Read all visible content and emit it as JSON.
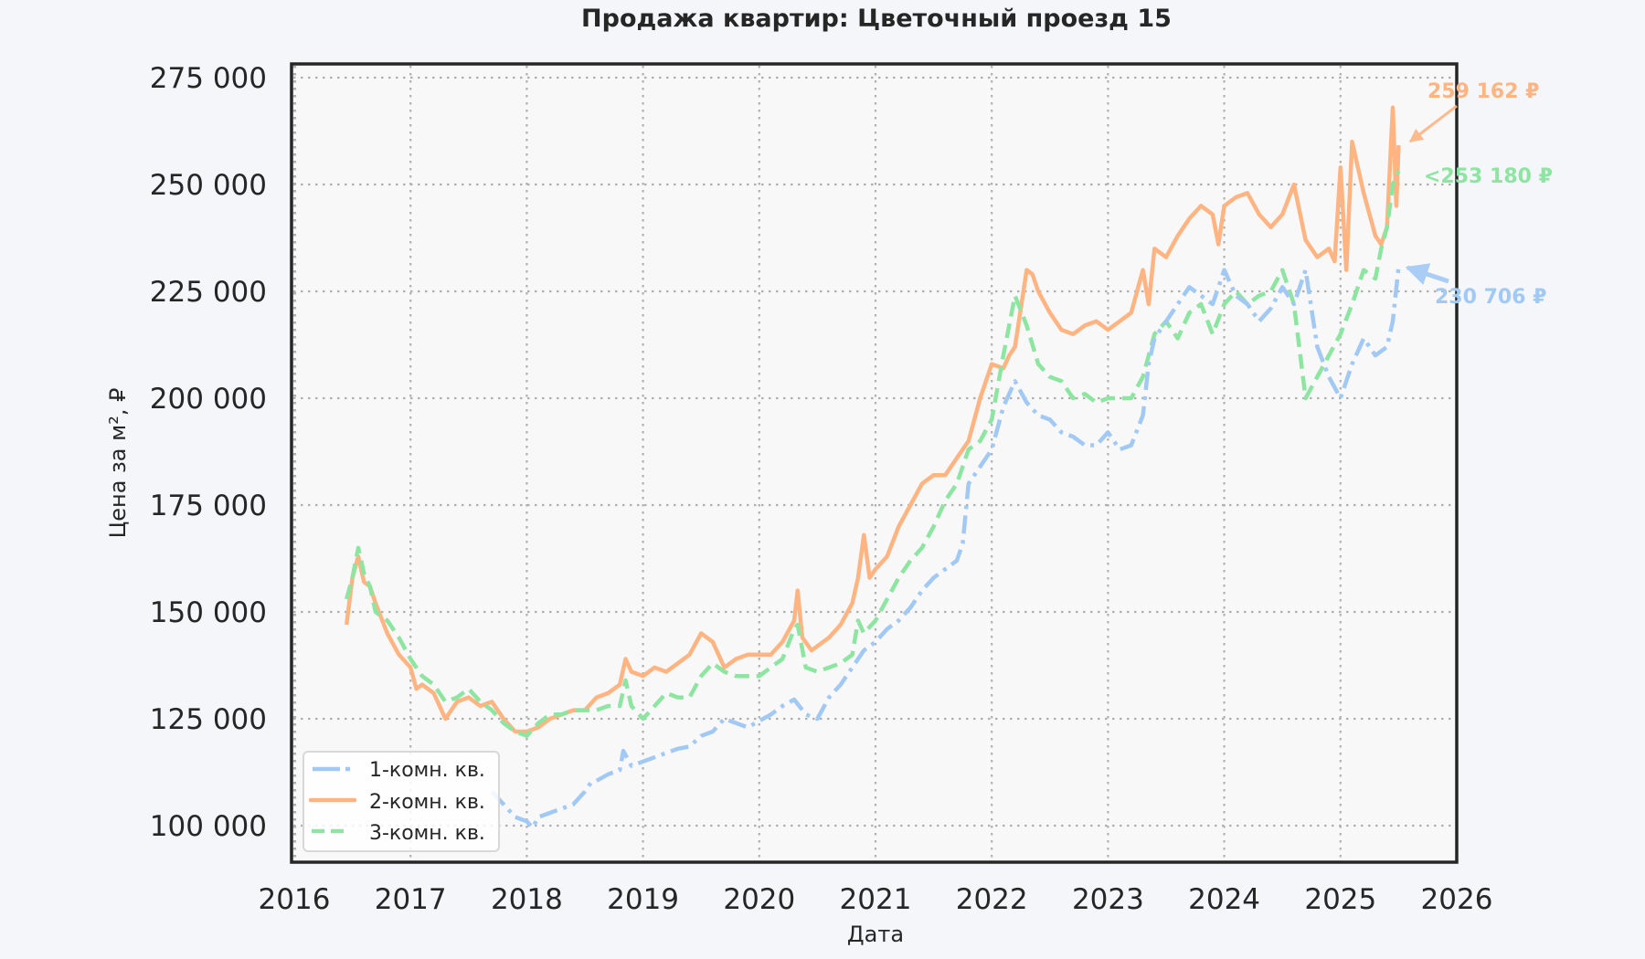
{
  "chart_data": {
    "type": "line",
    "title": "Продажа квартир: Цветочный проезд 15",
    "xlabel": "Дата",
    "ylabel": "Цена за м², ₽",
    "xlim": [
      2016,
      2026
    ],
    "ylim": [
      91500,
      278600
    ],
    "grid": true,
    "grid_style": "dotted",
    "legend_position": "lower left",
    "x_ticks": [
      "2016",
      "2017",
      "2018",
      "2019",
      "2020",
      "2021",
      "2022",
      "2023",
      "2024",
      "2025",
      "2026"
    ],
    "x_tick_values": [
      2016,
      2017,
      2018,
      2019,
      2020,
      2021,
      2022,
      2023,
      2024,
      2025,
      2026
    ],
    "y_ticks": [
      "100 000",
      "125 000",
      "150 000",
      "175 000",
      "200 000",
      "225 000",
      "250 000",
      "275 000"
    ],
    "y_tick_values": [
      100000,
      125000,
      150000,
      175000,
      200000,
      225000,
      250000,
      275000
    ],
    "series": [
      {
        "name": "1-комн. кв.",
        "color": "#a1c9f4",
        "style": "dashdot",
        "x": [
          2017.7,
          2017.8,
          2017.9,
          2018.0,
          2018.05,
          2018.1,
          2018.2,
          2018.3,
          2018.4,
          2018.5,
          2018.55,
          2018.6,
          2018.7,
          2018.8,
          2018.83,
          2018.9,
          2019.0,
          2019.1,
          2019.2,
          2019.3,
          2019.4,
          2019.5,
          2019.6,
          2019.7,
          2019.8,
          2019.9,
          2020.0,
          2020.1,
          2020.2,
          2020.3,
          2020.4,
          2020.5,
          2020.6,
          2020.7,
          2020.8,
          2020.9,
          2021.0,
          2021.1,
          2021.2,
          2021.3,
          2021.4,
          2021.5,
          2021.6,
          2021.7,
          2021.75,
          2021.8,
          2021.9,
          2022.0,
          2022.1,
          2022.2,
          2022.3,
          2022.4,
          2022.5,
          2022.6,
          2022.7,
          2022.8,
          2022.9,
          2023.0,
          2023.1,
          2023.2,
          2023.3,
          2023.35,
          2023.4,
          2023.5,
          2023.6,
          2023.7,
          2023.8,
          2023.9,
          2024.0,
          2024.1,
          2024.2,
          2024.3,
          2024.4,
          2024.5,
          2024.6,
          2024.7,
          2024.8,
          2024.9,
          2025.0,
          2025.1,
          2025.2,
          2025.3,
          2025.4,
          2025.45,
          2025.5
        ],
        "y": [
          108000,
          105000,
          102000,
          101000,
          99500,
          102000,
          103000,
          104000,
          105000,
          108000,
          110000,
          110500,
          112000,
          113000,
          117500,
          114000,
          115000,
          116000,
          117000,
          118000,
          118500,
          121000,
          122000,
          125000,
          124000,
          123000,
          124500,
          126000,
          128000,
          129500,
          126000,
          125000,
          130000,
          133000,
          137000,
          141000,
          143000,
          146000,
          148000,
          151000,
          155000,
          158000,
          160000,
          162000,
          166000,
          180000,
          184000,
          188000,
          198000,
          204000,
          199000,
          196000,
          195000,
          192000,
          191000,
          189000,
          189000,
          192000,
          188000,
          189000,
          196000,
          208000,
          214000,
          218000,
          222000,
          226000,
          224000,
          222000,
          230000,
          224000,
          222000,
          218000,
          221000,
          226000,
          222000,
          230000,
          212000,
          205000,
          200000,
          208000,
          214000,
          210000,
          212000,
          218000,
          230706
        ]
      },
      {
        "name": "2-комн. кв.",
        "color": "#ffb482",
        "style": "solid",
        "x": [
          2016.45,
          2016.5,
          2016.55,
          2016.6,
          2016.65,
          2016.7,
          2016.8,
          2016.9,
          2017.0,
          2017.05,
          2017.1,
          2017.2,
          2017.3,
          2017.4,
          2017.5,
          2017.6,
          2017.7,
          2017.8,
          2017.9,
          2018.0,
          2018.1,
          2018.2,
          2018.3,
          2018.4,
          2018.5,
          2018.6,
          2018.7,
          2018.8,
          2018.85,
          2018.9,
          2019.0,
          2019.1,
          2019.2,
          2019.3,
          2019.4,
          2019.5,
          2019.6,
          2019.7,
          2019.8,
          2019.9,
          2020.0,
          2020.1,
          2020.2,
          2020.3,
          2020.33,
          2020.37,
          2020.45,
          2020.5,
          2020.6,
          2020.7,
          2020.8,
          2020.85,
          2020.9,
          2020.95,
          2021.0,
          2021.1,
          2021.2,
          2021.3,
          2021.4,
          2021.5,
          2021.6,
          2021.7,
          2021.8,
          2021.9,
          2022.0,
          2022.1,
          2022.15,
          2022.2,
          2022.3,
          2022.35,
          2022.4,
          2022.5,
          2022.6,
          2022.7,
          2022.8,
          2022.9,
          2023.0,
          2023.1,
          2023.2,
          2023.3,
          2023.35,
          2023.4,
          2023.5,
          2023.6,
          2023.7,
          2023.8,
          2023.9,
          2023.95,
          2024.0,
          2024.1,
          2024.2,
          2024.3,
          2024.4,
          2024.5,
          2024.6,
          2024.7,
          2024.8,
          2024.9,
          2024.95,
          2025.0,
          2025.05,
          2025.1,
          2025.2,
          2025.3,
          2025.35,
          2025.4,
          2025.45,
          2025.48,
          2025.5
        ],
        "y": [
          147000,
          158000,
          163000,
          157000,
          156000,
          152000,
          145000,
          140000,
          137000,
          132000,
          133000,
          131000,
          125000,
          129000,
          130000,
          128000,
          129000,
          125000,
          122000,
          122000,
          123000,
          125000,
          126000,
          127000,
          127000,
          130000,
          131000,
          133000,
          139000,
          136000,
          135000,
          137000,
          136000,
          138000,
          140000,
          145000,
          143000,
          137000,
          139000,
          140000,
          140000,
          140000,
          143000,
          148000,
          155000,
          144000,
          141000,
          142000,
          144000,
          147000,
          152000,
          158000,
          168000,
          158000,
          160000,
          163000,
          170000,
          175000,
          180000,
          182000,
          182000,
          186000,
          190000,
          200000,
          208000,
          207000,
          210000,
          212000,
          230000,
          229000,
          225000,
          220000,
          216000,
          215000,
          217000,
          218000,
          216000,
          218000,
          220000,
          230000,
          222000,
          235000,
          233000,
          238000,
          242000,
          245000,
          243000,
          236000,
          245000,
          247000,
          248000,
          243000,
          240000,
          243000,
          250000,
          237000,
          233000,
          235000,
          232000,
          254000,
          230000,
          260000,
          248000,
          238000,
          236000,
          240000,
          268000,
          245000,
          259162
        ]
      },
      {
        "name": "3-комн. кв.",
        "color": "#8de5a1",
        "style": "dashed",
        "x": [
          2016.45,
          2016.5,
          2016.55,
          2016.6,
          2016.65,
          2016.7,
          2016.8,
          2016.9,
          2017.0,
          2017.1,
          2017.2,
          2017.3,
          2017.4,
          2017.5,
          2017.6,
          2017.7,
          2017.8,
          2017.9,
          2018.0,
          2018.1,
          2018.2,
          2018.3,
          2018.4,
          2018.5,
          2018.6,
          2018.7,
          2018.8,
          2018.85,
          2018.9,
          2019.0,
          2019.1,
          2019.2,
          2019.3,
          2019.4,
          2019.5,
          2019.6,
          2019.7,
          2019.8,
          2019.9,
          2020.0,
          2020.1,
          2020.2,
          2020.3,
          2020.33,
          2020.4,
          2020.5,
          2020.6,
          2020.7,
          2020.8,
          2020.85,
          2020.9,
          2021.0,
          2021.1,
          2021.2,
          2021.3,
          2021.4,
          2021.5,
          2021.6,
          2021.7,
          2021.8,
          2021.9,
          2022.0,
          2022.1,
          2022.2,
          2022.3,
          2022.4,
          2022.5,
          2022.6,
          2022.7,
          2022.8,
          2022.9,
          2023.0,
          2023.1,
          2023.2,
          2023.3,
          2023.4,
          2023.5,
          2023.6,
          2023.7,
          2023.8,
          2023.9,
          2024.0,
          2024.1,
          2024.2,
          2024.3,
          2024.4,
          2024.5,
          2024.6,
          2024.7,
          2024.8,
          2024.9,
          2025.0,
          2025.1,
          2025.2,
          2025.3,
          2025.35,
          2025.4,
          2025.45,
          2025.5
        ],
        "y": [
          153000,
          158000,
          165000,
          159000,
          156000,
          150000,
          148000,
          144000,
          139000,
          135000,
          133000,
          129000,
          130000,
          132000,
          129000,
          127000,
          124000,
          122000,
          121000,
          124000,
          126000,
          126000,
          127000,
          127000,
          127000,
          128000,
          128000,
          134000,
          128000,
          125000,
          128000,
          131000,
          130000,
          130000,
          135000,
          138000,
          136000,
          135000,
          135000,
          135000,
          137000,
          139000,
          146000,
          147000,
          137000,
          136000,
          137000,
          138000,
          140000,
          148000,
          145000,
          148000,
          153000,
          158000,
          162000,
          165000,
          170000,
          176000,
          180000,
          188000,
          190000,
          195000,
          210000,
          224000,
          217000,
          208000,
          205000,
          204000,
          200000,
          201000,
          199000,
          200000,
          200000,
          200000,
          205000,
          215000,
          218000,
          214000,
          220000,
          222000,
          215000,
          222000,
          225000,
          222000,
          224000,
          225000,
          230000,
          222000,
          200000,
          205000,
          210000,
          215000,
          222000,
          230000,
          228000,
          235000,
          240000,
          250000,
          253180
        ]
      }
    ],
    "annotations": [
      {
        "text": "259 162 ₽",
        "series": "2-комн. кв.",
        "color": "#ffb482",
        "x": 2025.5,
        "y": 259162
      },
      {
        "text": "253 180 ₽",
        "series": "3-комн. кв.",
        "color": "#8de5a1",
        "x": 2025.5,
        "y": 253180
      },
      {
        "text": "230 706 ₽",
        "series": "1-комн. кв.",
        "color": "#a1c9f4",
        "x": 2025.5,
        "y": 230706
      }
    ]
  },
  "legend": {
    "items": [
      {
        "label": "1-комн. кв.",
        "color": "#a1c9f4",
        "style": "dashdot"
      },
      {
        "label": "2-комн. кв.",
        "color": "#ffb482",
        "style": "solid"
      },
      {
        "label": "3-комн. кв.",
        "color": "#8de5a1",
        "style": "dashed"
      }
    ]
  },
  "colors": {
    "background": "#f4f6fa",
    "plot_background": "#f8f8f9",
    "frame": "#262626",
    "grid": "#b0b0b0"
  }
}
